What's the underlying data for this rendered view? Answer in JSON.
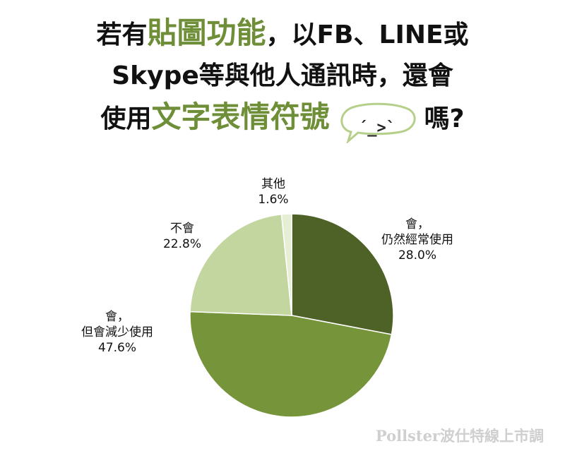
{
  "header": {
    "line1_a": "若有",
    "line1_hl": "貼圖功能",
    "line1_b": "，以FB、LINE或",
    "line2": "Skype等與他人通訊時，還會",
    "line3_a": "使用",
    "line3_hl": "文字表情符號",
    "line3_b": "嗎?",
    "emoticon": "´_>`"
  },
  "chart_data": {
    "type": "pie",
    "start_angle_deg": 0,
    "direction": "clockwise",
    "slices": [
      {
        "label_lines": [
          "會，",
          "仍然經常使用"
        ],
        "value": 28.0,
        "value_text": "28.0%",
        "color": "#4e6126"
      },
      {
        "label_lines": [
          "會，",
          "但會減少使用"
        ],
        "value": 47.6,
        "value_text": "47.6%",
        "color": "#76953b"
      },
      {
        "label_lines": [
          "不會"
        ],
        "value": 22.8,
        "value_text": "22.8%",
        "color": "#c4d6a0"
      },
      {
        "label_lines": [
          "其他"
        ],
        "value": 1.6,
        "value_text": "1.6%",
        "color": "#e6eed6"
      }
    ]
  },
  "watermark": "Pollster波仕特線上市調",
  "colors": {
    "accent": "#6e8f37",
    "bubble_stroke": "#b6cf8a"
  }
}
